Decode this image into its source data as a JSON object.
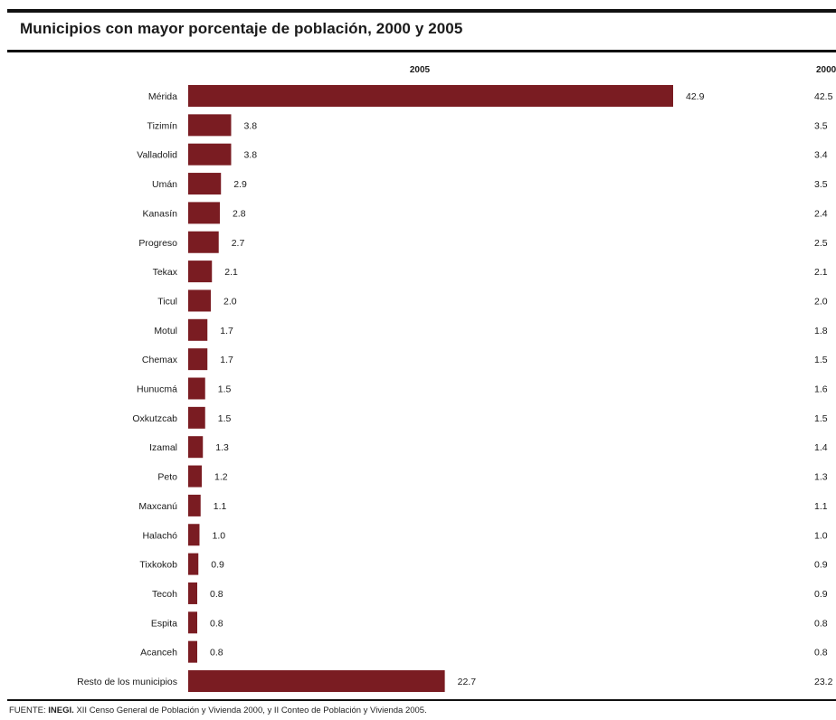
{
  "title": "Municipios con mayor porcentaje de población, 2000 y 2005",
  "source": {
    "prefix": "FUENTE:",
    "org": "INEGI.",
    "text": "XII Censo General de Población y Vivienda 2000, y II Conteo de Población y Vivienda 2005."
  },
  "colors": {
    "bar": "#7a1c22",
    "text": "#1a1a1a",
    "rule": "#111111"
  },
  "chart_data": {
    "type": "bar",
    "orientation": "horizontal",
    "categories": [
      "Mérida",
      "Tizimín",
      "Valladolid",
      "Umán",
      "Kanasín",
      "Progreso",
      "Tekax",
      "Ticul",
      "Motul",
      "Chemax",
      "Hunucmá",
      "Oxkutzcab",
      "Izamal",
      "Peto",
      "Maxcanú",
      "Halachó",
      "Tixkokob",
      "Tecoh",
      "Espita",
      "Acanceh",
      "Resto de los municipios"
    ],
    "series": [
      {
        "name": "2005",
        "values": [
          42.9,
          3.8,
          3.8,
          2.9,
          2.8,
          2.7,
          2.1,
          2.0,
          1.7,
          1.7,
          1.5,
          1.5,
          1.3,
          1.2,
          1.1,
          1.0,
          0.9,
          0.8,
          0.8,
          0.8,
          22.7
        ],
        "labels": [
          "42.9",
          "3.8",
          "3.8",
          "2.9",
          "2.8",
          "2.7",
          "2.1",
          "2.0",
          "1.7",
          "1.7",
          "1.5",
          "1.5",
          "1.3",
          "1.2",
          "1.1",
          "1.0",
          "0.9",
          "0.8",
          "0.8",
          "0.8",
          "22.7"
        ]
      },
      {
        "name": "2000",
        "values": [
          42.5,
          3.5,
          3.4,
          3.5,
          2.4,
          2.5,
          2.1,
          2.0,
          1.8,
          1.5,
          1.6,
          1.5,
          1.4,
          1.3,
          1.1,
          1.0,
          0.9,
          0.9,
          0.8,
          0.8,
          23.2
        ],
        "labels": [
          "42.5",
          "3.5",
          "3.4",
          "3.5",
          "2.4",
          "2.5",
          "2.1",
          "2.0",
          "1.8",
          "1.5",
          "1.6",
          "1.5",
          "1.4",
          "1.3",
          "1.1",
          "1.0",
          "0.9",
          "0.9",
          "0.8",
          "0.8",
          "23.2"
        ]
      }
    ],
    "xlim": [
      0,
      42.9
    ],
    "grid": false,
    "legend": "none"
  }
}
